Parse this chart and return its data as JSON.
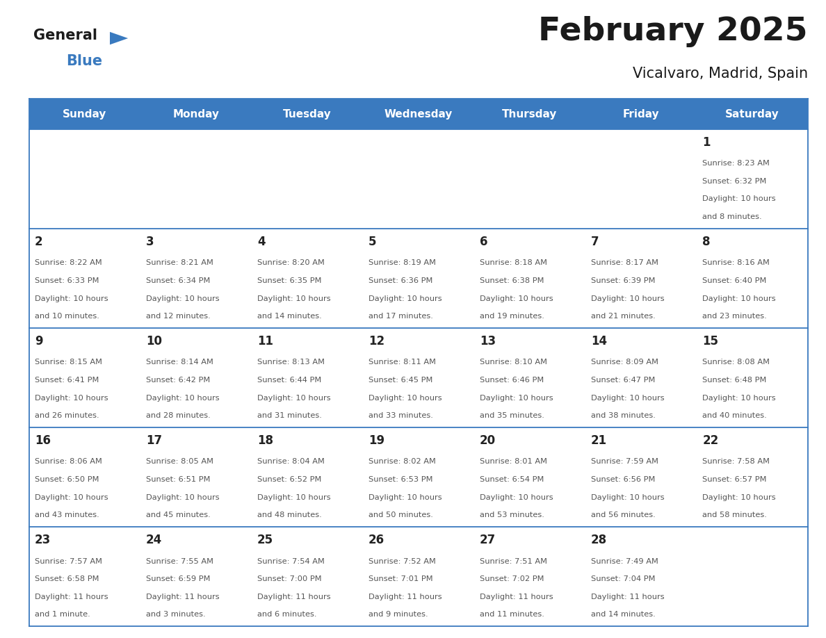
{
  "title": "February 2025",
  "subtitle": "Vicalvaro, Madrid, Spain",
  "header_bg": "#3a7abf",
  "header_text": "#ffffff",
  "day_names": [
    "Sunday",
    "Monday",
    "Tuesday",
    "Wednesday",
    "Thursday",
    "Friday",
    "Saturday"
  ],
  "cell_bg": "#ffffff",
  "separator_color": "#3a7abf",
  "day_num_color": "#333333",
  "text_color": "#555555",
  "title_color": "#1a1a1a",
  "subtitle_color": "#1a1a1a",
  "days": [
    {
      "day": 1,
      "col": 6,
      "row": 0,
      "sunrise": "8:23 AM",
      "sunset": "6:32 PM",
      "daylight_line1": "Daylight: 10 hours",
      "daylight_line2": "and 8 minutes."
    },
    {
      "day": 2,
      "col": 0,
      "row": 1,
      "sunrise": "8:22 AM",
      "sunset": "6:33 PM",
      "daylight_line1": "Daylight: 10 hours",
      "daylight_line2": "and 10 minutes."
    },
    {
      "day": 3,
      "col": 1,
      "row": 1,
      "sunrise": "8:21 AM",
      "sunset": "6:34 PM",
      "daylight_line1": "Daylight: 10 hours",
      "daylight_line2": "and 12 minutes."
    },
    {
      "day": 4,
      "col": 2,
      "row": 1,
      "sunrise": "8:20 AM",
      "sunset": "6:35 PM",
      "daylight_line1": "Daylight: 10 hours",
      "daylight_line2": "and 14 minutes."
    },
    {
      "day": 5,
      "col": 3,
      "row": 1,
      "sunrise": "8:19 AM",
      "sunset": "6:36 PM",
      "daylight_line1": "Daylight: 10 hours",
      "daylight_line2": "and 17 minutes."
    },
    {
      "day": 6,
      "col": 4,
      "row": 1,
      "sunrise": "8:18 AM",
      "sunset": "6:38 PM",
      "daylight_line1": "Daylight: 10 hours",
      "daylight_line2": "and 19 minutes."
    },
    {
      "day": 7,
      "col": 5,
      "row": 1,
      "sunrise": "8:17 AM",
      "sunset": "6:39 PM",
      "daylight_line1": "Daylight: 10 hours",
      "daylight_line2": "and 21 minutes."
    },
    {
      "day": 8,
      "col": 6,
      "row": 1,
      "sunrise": "8:16 AM",
      "sunset": "6:40 PM",
      "daylight_line1": "Daylight: 10 hours",
      "daylight_line2": "and 23 minutes."
    },
    {
      "day": 9,
      "col": 0,
      "row": 2,
      "sunrise": "8:15 AM",
      "sunset": "6:41 PM",
      "daylight_line1": "Daylight: 10 hours",
      "daylight_line2": "and 26 minutes."
    },
    {
      "day": 10,
      "col": 1,
      "row": 2,
      "sunrise": "8:14 AM",
      "sunset": "6:42 PM",
      "daylight_line1": "Daylight: 10 hours",
      "daylight_line2": "and 28 minutes."
    },
    {
      "day": 11,
      "col": 2,
      "row": 2,
      "sunrise": "8:13 AM",
      "sunset": "6:44 PM",
      "daylight_line1": "Daylight: 10 hours",
      "daylight_line2": "and 31 minutes."
    },
    {
      "day": 12,
      "col": 3,
      "row": 2,
      "sunrise": "8:11 AM",
      "sunset": "6:45 PM",
      "daylight_line1": "Daylight: 10 hours",
      "daylight_line2": "and 33 minutes."
    },
    {
      "day": 13,
      "col": 4,
      "row": 2,
      "sunrise": "8:10 AM",
      "sunset": "6:46 PM",
      "daylight_line1": "Daylight: 10 hours",
      "daylight_line2": "and 35 minutes."
    },
    {
      "day": 14,
      "col": 5,
      "row": 2,
      "sunrise": "8:09 AM",
      "sunset": "6:47 PM",
      "daylight_line1": "Daylight: 10 hours",
      "daylight_line2": "and 38 minutes."
    },
    {
      "day": 15,
      "col": 6,
      "row": 2,
      "sunrise": "8:08 AM",
      "sunset": "6:48 PM",
      "daylight_line1": "Daylight: 10 hours",
      "daylight_line2": "and 40 minutes."
    },
    {
      "day": 16,
      "col": 0,
      "row": 3,
      "sunrise": "8:06 AM",
      "sunset": "6:50 PM",
      "daylight_line1": "Daylight: 10 hours",
      "daylight_line2": "and 43 minutes."
    },
    {
      "day": 17,
      "col": 1,
      "row": 3,
      "sunrise": "8:05 AM",
      "sunset": "6:51 PM",
      "daylight_line1": "Daylight: 10 hours",
      "daylight_line2": "and 45 minutes."
    },
    {
      "day": 18,
      "col": 2,
      "row": 3,
      "sunrise": "8:04 AM",
      "sunset": "6:52 PM",
      "daylight_line1": "Daylight: 10 hours",
      "daylight_line2": "and 48 minutes."
    },
    {
      "day": 19,
      "col": 3,
      "row": 3,
      "sunrise": "8:02 AM",
      "sunset": "6:53 PM",
      "daylight_line1": "Daylight: 10 hours",
      "daylight_line2": "and 50 minutes."
    },
    {
      "day": 20,
      "col": 4,
      "row": 3,
      "sunrise": "8:01 AM",
      "sunset": "6:54 PM",
      "daylight_line1": "Daylight: 10 hours",
      "daylight_line2": "and 53 minutes."
    },
    {
      "day": 21,
      "col": 5,
      "row": 3,
      "sunrise": "7:59 AM",
      "sunset": "6:56 PM",
      "daylight_line1": "Daylight: 10 hours",
      "daylight_line2": "and 56 minutes."
    },
    {
      "day": 22,
      "col": 6,
      "row": 3,
      "sunrise": "7:58 AM",
      "sunset": "6:57 PM",
      "daylight_line1": "Daylight: 10 hours",
      "daylight_line2": "and 58 minutes."
    },
    {
      "day": 23,
      "col": 0,
      "row": 4,
      "sunrise": "7:57 AM",
      "sunset": "6:58 PM",
      "daylight_line1": "Daylight: 11 hours",
      "daylight_line2": "and 1 minute."
    },
    {
      "day": 24,
      "col": 1,
      "row": 4,
      "sunrise": "7:55 AM",
      "sunset": "6:59 PM",
      "daylight_line1": "Daylight: 11 hours",
      "daylight_line2": "and 3 minutes."
    },
    {
      "day": 25,
      "col": 2,
      "row": 4,
      "sunrise": "7:54 AM",
      "sunset": "7:00 PM",
      "daylight_line1": "Daylight: 11 hours",
      "daylight_line2": "and 6 minutes."
    },
    {
      "day": 26,
      "col": 3,
      "row": 4,
      "sunrise": "7:52 AM",
      "sunset": "7:01 PM",
      "daylight_line1": "Daylight: 11 hours",
      "daylight_line2": "and 9 minutes."
    },
    {
      "day": 27,
      "col": 4,
      "row": 4,
      "sunrise": "7:51 AM",
      "sunset": "7:02 PM",
      "daylight_line1": "Daylight: 11 hours",
      "daylight_line2": "and 11 minutes."
    },
    {
      "day": 28,
      "col": 5,
      "row": 4,
      "sunrise": "7:49 AM",
      "sunset": "7:04 PM",
      "daylight_line1": "Daylight: 11 hours",
      "daylight_line2": "and 14 minutes."
    }
  ]
}
